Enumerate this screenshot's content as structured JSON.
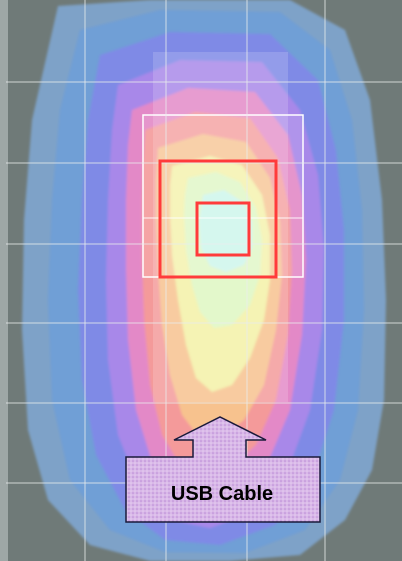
{
  "annotation": {
    "label": "USB Cable"
  },
  "colors": {
    "background": "#6f7a78",
    "field_low": "#6b9fd3",
    "field_mid_blue": "#7f86e8",
    "field_violet": "#b07fe6",
    "field_pink": "#ee88b5",
    "field_salmon": "#f6a08d",
    "field_yellow": "#f2f3a6",
    "field_peak": "#d4fbe9",
    "grid_line": "#e8ecec",
    "marker_square": "#ff3b3b",
    "outer_square": "#ffffff",
    "label_box_fill": "#d6b0e4",
    "label_box_stroke": "#1a1a3a"
  },
  "icons": {
    "arrow": "up-arrow-icon"
  }
}
